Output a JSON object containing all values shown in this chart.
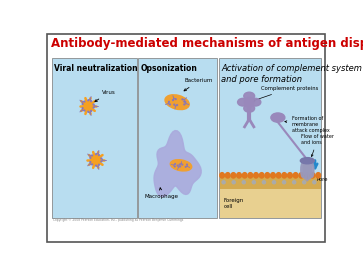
{
  "title": "Antibody-mediated mechanisms of antigen disposal",
  "title_color": "#cc0000",
  "title_fontsize": 8.5,
  "bg_color": "#ffffff",
  "panel_bg": "#b8ddf0",
  "border_color": "#555555",
  "panel1_label": "Viral neutralization",
  "panel2_label": "Opsonization",
  "panel3_label": "Activation of complement system\nand pore formation",
  "label_fontsize": 5.5,
  "panel3_label_fontsize": 6.0,
  "virus_color": "#f5a020",
  "antibody_color": "#8877bb",
  "bacterium_color": "#f0a030",
  "macrophage_color": "#aaaadd",
  "complement_color": "#9988bb",
  "membrane_gold": "#d4aa50",
  "membrane_orange": "#e07820",
  "pore_color": "#9999bb",
  "cell_fill": "#e8c878",
  "blue_arrow_color": "#2288cc",
  "copyright_text": "Copyright © 2008 Pearson Education, Inc., publishing as Pearson Benjamin Cummings"
}
